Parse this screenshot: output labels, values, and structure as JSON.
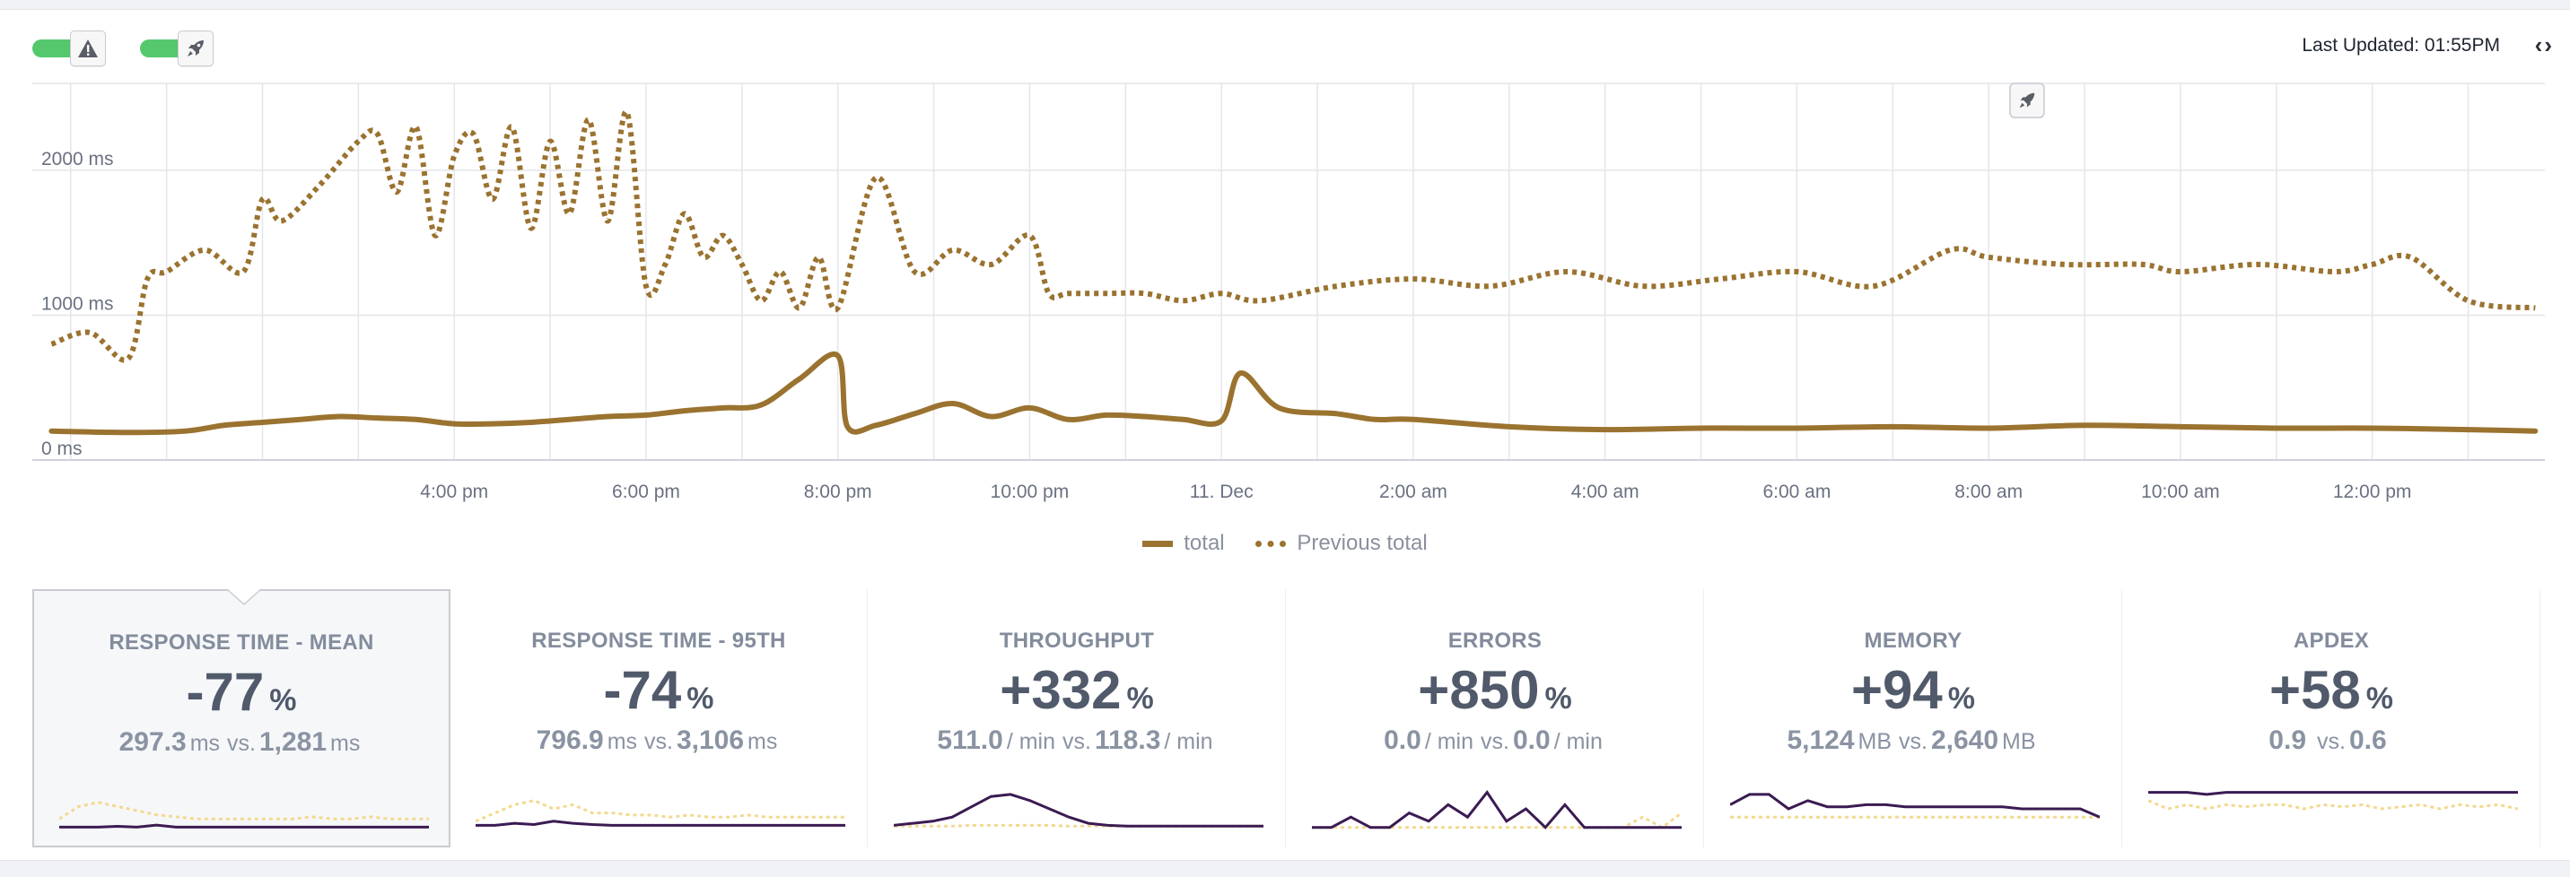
{
  "header": {
    "toggles": [
      {
        "name": "alerts",
        "icon": "warning-icon",
        "on": true
      },
      {
        "name": "deploys",
        "icon": "rocket-icon",
        "on": true
      }
    ],
    "last_updated": "Last Updated: 01:55PM",
    "nav_arrows": "‹›"
  },
  "chart_data": {
    "type": "line",
    "y_ticks": [
      "2000 ms",
      "1000 ms",
      "0 ms"
    ],
    "ylim": [
      0,
      2600
    ],
    "y_tick_values": [
      2000,
      1000,
      0
    ],
    "x_ticks": [
      "4:00 pm",
      "6:00 pm",
      "8:00 pm",
      "10:00 pm",
      "11. Dec",
      "2:00 am",
      "4:00 am",
      "6:00 am",
      "8:00 am",
      "10:00 am",
      "12:00 pm"
    ],
    "x_tick_positions": [
      1,
      2,
      3,
      4,
      5,
      6,
      7,
      8,
      9,
      10,
      11
    ],
    "xlim": [
      -1.2,
      11.9
    ],
    "deploy_marker_at": 9.2,
    "series": [
      {
        "name": "total",
        "style": "solid",
        "color": "#9a7330",
        "x": [
          -1.1,
          -0.7,
          -0.4,
          -0.2,
          0,
          0.2,
          0.4,
          0.6,
          0.8,
          1.0,
          1.2,
          1.4,
          1.6,
          1.8,
          2.0,
          2.2,
          2.4,
          2.6,
          2.8,
          3.0,
          3.05,
          3.2,
          3.4,
          3.6,
          3.8,
          4.0,
          4.2,
          4.4,
          4.6,
          4.8,
          5.0,
          5.1,
          5.3,
          5.6,
          5.8,
          6.0,
          6.5,
          7.0,
          7.5,
          8.0,
          8.5,
          9.0,
          9.5,
          10.0,
          10.5,
          11.0,
          11.5,
          11.85
        ],
        "y": [
          200,
          190,
          200,
          240,
          260,
          280,
          300,
          290,
          280,
          250,
          250,
          260,
          280,
          300,
          310,
          340,
          360,
          380,
          560,
          720,
          230,
          240,
          320,
          390,
          300,
          360,
          280,
          310,
          300,
          280,
          270,
          600,
          360,
          320,
          280,
          280,
          230,
          210,
          220,
          220,
          230,
          220,
          240,
          230,
          220,
          220,
          210,
          200
        ]
      },
      {
        "name": "Previous total",
        "style": "dotted",
        "color": "#9a7330",
        "x": [
          -1.1,
          -0.9,
          -0.7,
          -0.6,
          -0.5,
          -0.3,
          -0.1,
          0.0,
          0.1,
          0.3,
          0.5,
          0.6,
          0.7,
          0.8,
          0.9,
          1.0,
          1.1,
          1.2,
          1.3,
          1.4,
          1.5,
          1.6,
          1.7,
          1.8,
          1.9,
          2.0,
          2.1,
          2.2,
          2.3,
          2.4,
          2.5,
          2.6,
          2.7,
          2.8,
          2.9,
          3.0,
          3.2,
          3.4,
          3.6,
          3.8,
          4.0,
          4.1,
          4.2,
          4.4,
          4.6,
          4.8,
          5.0,
          5.2,
          5.6,
          6.0,
          6.4,
          6.8,
          7.2,
          7.6,
          8.0,
          8.4,
          8.8,
          9.0,
          9.4,
          9.8,
          10.0,
          10.4,
          10.8,
          11.0,
          11.2,
          11.5,
          11.85
        ],
        "y": [
          800,
          880,
          700,
          1250,
          1300,
          1450,
          1300,
          1800,
          1650,
          1900,
          2200,
          2250,
          1850,
          2300,
          1550,
          2100,
          2250,
          1800,
          2300,
          1600,
          2200,
          1700,
          2350,
          1650,
          2400,
          1200,
          1350,
          1700,
          1400,
          1550,
          1350,
          1100,
          1300,
          1050,
          1400,
          1050,
          1950,
          1300,
          1450,
          1350,
          1550,
          1150,
          1150,
          1150,
          1150,
          1100,
          1150,
          1100,
          1200,
          1250,
          1200,
          1300,
          1200,
          1250,
          1300,
          1200,
          1450,
          1400,
          1350,
          1350,
          1300,
          1350,
          1300,
          1350,
          1400,
          1100,
          1050
        ]
      }
    ]
  },
  "legend": [
    {
      "label": "total",
      "style": "solid"
    },
    {
      "label": "Previous total",
      "style": "dotted"
    }
  ],
  "tiles": [
    {
      "title": "RESPONSE TIME - MEAN",
      "change": "-77",
      "pct": "%",
      "current": "297.3",
      "current_unit": "ms",
      "vs": "vs.",
      "previous": "1,281",
      "previous_unit": "ms",
      "selected": true,
      "spark_current": [
        0.1,
        0.1,
        0.1,
        0.12,
        0.1,
        0.15,
        0.1,
        0.1,
        0.1,
        0.1,
        0.1,
        0.1,
        0.1,
        0.1,
        0.1,
        0.1,
        0.1,
        0.1,
        0.1,
        0.1
      ],
      "spark_previous": [
        0.3,
        0.6,
        0.7,
        0.6,
        0.5,
        0.4,
        0.35,
        0.3,
        0.3,
        0.3,
        0.3,
        0.3,
        0.3,
        0.35,
        0.3,
        0.3,
        0.35,
        0.3,
        0.3,
        0.3
      ]
    },
    {
      "title": "RESPONSE TIME - 95TH",
      "change": "-74",
      "pct": "%",
      "current": "796.9",
      "current_unit": "ms",
      "vs": "vs.",
      "previous": "3,106",
      "previous_unit": "ms",
      "selected": false,
      "spark_current": [
        0.1,
        0.1,
        0.15,
        0.12,
        0.2,
        0.15,
        0.12,
        0.1,
        0.1,
        0.1,
        0.1,
        0.1,
        0.1,
        0.1,
        0.1,
        0.1,
        0.1,
        0.1,
        0.1,
        0.1
      ],
      "spark_previous": [
        0.2,
        0.4,
        0.6,
        0.7,
        0.5,
        0.6,
        0.4,
        0.4,
        0.35,
        0.35,
        0.3,
        0.35,
        0.3,
        0.3,
        0.35,
        0.3,
        0.3,
        0.3,
        0.3,
        0.3
      ]
    },
    {
      "title": "THROUGHPUT",
      "change": "+332",
      "pct": "%",
      "current": "511.0",
      "current_unit": "/ min",
      "vs": "vs.",
      "previous": "118.3",
      "previous_unit": "/ min",
      "selected": false,
      "spark_current": [
        0.1,
        0.15,
        0.2,
        0.3,
        0.55,
        0.8,
        0.85,
        0.7,
        0.5,
        0.3,
        0.15,
        0.1,
        0.08,
        0.08,
        0.08,
        0.08,
        0.08,
        0.08,
        0.08,
        0.08
      ],
      "spark_previous": [
        0.08,
        0.08,
        0.08,
        0.08,
        0.1,
        0.1,
        0.1,
        0.1,
        0.1,
        0.08,
        0.08,
        0.08,
        0.08,
        0.08,
        0.08,
        0.08,
        0.08,
        0.08,
        0.08,
        0.08
      ]
    },
    {
      "title": "ERRORS",
      "change": "+850",
      "pct": "%",
      "current": "0.0",
      "current_unit": "/ min",
      "vs": "vs.",
      "previous": "0.0",
      "previous_unit": "/ min",
      "selected": false,
      "spark_current": [
        0.05,
        0.05,
        0.3,
        0.05,
        0.05,
        0.4,
        0.2,
        0.6,
        0.3,
        0.9,
        0.2,
        0.5,
        0.05,
        0.6,
        0.05,
        0.05,
        0.05,
        0.05,
        0.05,
        0.05
      ],
      "spark_previous": [
        0.05,
        0.05,
        0.05,
        0.05,
        0.05,
        0.05,
        0.05,
        0.05,
        0.05,
        0.05,
        0.05,
        0.05,
        0.05,
        0.05,
        0.05,
        0.05,
        0.05,
        0.3,
        0.05,
        0.4
      ]
    },
    {
      "title": "MEMORY",
      "change": "+94",
      "pct": "%",
      "current": "5,124",
      "current_unit": "MB",
      "vs": "vs.",
      "previous": "2,640",
      "previous_unit": "MB",
      "selected": false,
      "spark_current": [
        0.6,
        0.85,
        0.85,
        0.5,
        0.7,
        0.55,
        0.55,
        0.6,
        0.6,
        0.55,
        0.55,
        0.55,
        0.55,
        0.55,
        0.55,
        0.5,
        0.5,
        0.5,
        0.5,
        0.3
      ],
      "spark_previous": [
        0.3,
        0.3,
        0.3,
        0.3,
        0.3,
        0.3,
        0.3,
        0.3,
        0.3,
        0.3,
        0.3,
        0.3,
        0.3,
        0.3,
        0.3,
        0.3,
        0.3,
        0.3,
        0.3,
        0.3
      ]
    },
    {
      "title": "APDEX",
      "change": "+58",
      "pct": "%",
      "current": "0.9",
      "current_unit": "",
      "vs": "vs.",
      "previous": "0.6",
      "previous_unit": "",
      "selected": false,
      "spark_current": [
        0.9,
        0.9,
        0.9,
        0.85,
        0.9,
        0.9,
        0.9,
        0.9,
        0.9,
        0.9,
        0.9,
        0.9,
        0.9,
        0.9,
        0.9,
        0.9,
        0.9,
        0.9,
        0.9,
        0.9
      ],
      "spark_previous": [
        0.7,
        0.5,
        0.6,
        0.5,
        0.6,
        0.55,
        0.6,
        0.6,
        0.5,
        0.6,
        0.55,
        0.6,
        0.5,
        0.55,
        0.6,
        0.5,
        0.6,
        0.55,
        0.6,
        0.5
      ]
    }
  ],
  "colors": {
    "main_series": "#9a7330",
    "spark_current": "#3b1b52",
    "spark_previous": "#f3d98f",
    "toggle_on": "#55c86e"
  }
}
